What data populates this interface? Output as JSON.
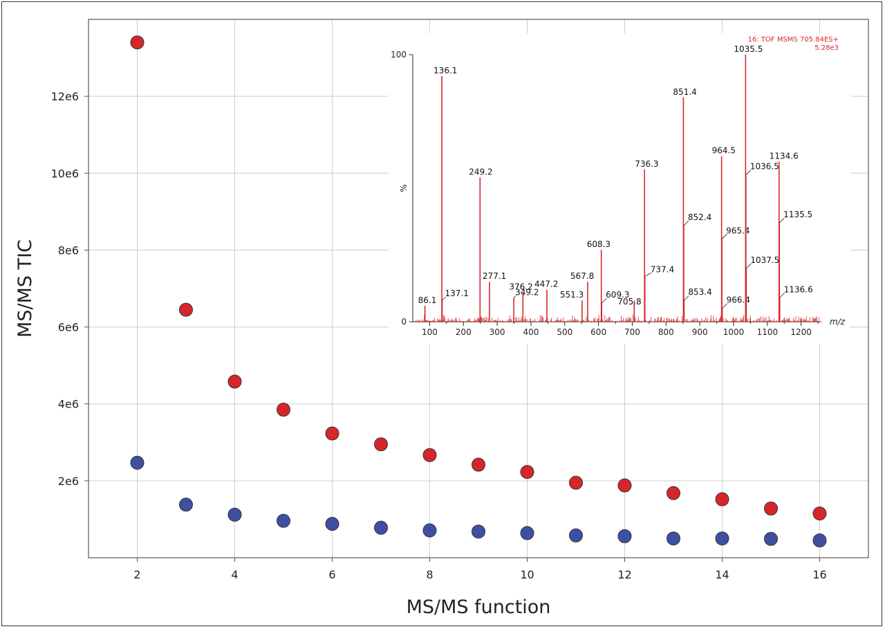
{
  "colors": {
    "red_series": "#d7262b",
    "blue_series": "#3f4fa3",
    "grid": "#cccccc",
    "spectrum": "#d7262b"
  },
  "chart_data": [
    {
      "type": "scatter",
      "xlabel": "MS/MS function",
      "ylabel": "MS/MS TIC",
      "xlim": [
        1,
        17
      ],
      "ylim": [
        0,
        14000000
      ],
      "x_ticks": [
        2,
        4,
        6,
        8,
        10,
        12,
        14,
        16
      ],
      "y_ticks": [
        2000000,
        4000000,
        6000000,
        8000000,
        10000000,
        12000000
      ],
      "y_tick_labels": [
        "2e6",
        "4e6",
        "6e6",
        "8e6",
        "10e6",
        "12e6"
      ],
      "grid": true,
      "series": [
        {
          "color": "#d7262b",
          "x": [
            2,
            3,
            4,
            5,
            6,
            7,
            8,
            9,
            10,
            11,
            12,
            13,
            14,
            15,
            16
          ],
          "y": [
            13400000,
            6450000,
            4580000,
            3850000,
            3230000,
            2950000,
            2670000,
            2420000,
            2230000,
            1950000,
            1880000,
            1680000,
            1520000,
            1280000,
            1150000
          ]
        },
        {
          "color": "#3f4fa3",
          "x": [
            2,
            3,
            4,
            5,
            6,
            7,
            8,
            9,
            10,
            11,
            12,
            13,
            14,
            15,
            16
          ],
          "y": [
            2470000,
            1380000,
            1120000,
            960000,
            880000,
            780000,
            710000,
            680000,
            640000,
            580000,
            560000,
            500000,
            500000,
            490000,
            450000
          ]
        }
      ]
    },
    {
      "type": "line",
      "header_line1": "16: TOF MSMS 705.84ES+",
      "header_line2": "5.28e3",
      "xlabel": "m/z",
      "ylabel": "%",
      "xlim": [
        50,
        1260
      ],
      "ylim": [
        0,
        100
      ],
      "x_ticks": [
        100,
        200,
        300,
        400,
        500,
        600,
        700,
        800,
        900,
        1000,
        1100,
        1200
      ],
      "y_tick_labels": [
        "0",
        "100"
      ],
      "peaks": [
        {
          "mz": 86.1,
          "intensity": 6,
          "label": "86.1"
        },
        {
          "mz": 136.1,
          "intensity": 92,
          "label": "136.1"
        },
        {
          "mz": 137.1,
          "intensity": 8,
          "label": "137.1"
        },
        {
          "mz": 249.2,
          "intensity": 54,
          "label": "249.2"
        },
        {
          "mz": 277.1,
          "intensity": 15,
          "label": "277.1"
        },
        {
          "mz": 349.2,
          "intensity": 9,
          "label": "349.2"
        },
        {
          "mz": 376.2,
          "intensity": 11,
          "label": "376.2"
        },
        {
          "mz": 447.2,
          "intensity": 12,
          "label": "447.2"
        },
        {
          "mz": 551.3,
          "intensity": 8,
          "label": "551.3"
        },
        {
          "mz": 567.8,
          "intensity": 15,
          "label": "567.8"
        },
        {
          "mz": 608.3,
          "intensity": 27,
          "label": "608.3"
        },
        {
          "mz": 609.3,
          "intensity": 7,
          "label": "609.3"
        },
        {
          "mz": 705.8,
          "intensity": 8,
          "label": "705.8"
        },
        {
          "mz": 736.3,
          "intensity": 57,
          "label": "736.3"
        },
        {
          "mz": 737.4,
          "intensity": 17,
          "label": "737.4"
        },
        {
          "mz": 851.4,
          "intensity": 84,
          "label": "851.4"
        },
        {
          "mz": 852.4,
          "intensity": 36,
          "label": "852.4"
        },
        {
          "mz": 853.4,
          "intensity": 8,
          "label": "853.4"
        },
        {
          "mz": 964.5,
          "intensity": 62,
          "label": "964.5"
        },
        {
          "mz": 965.4,
          "intensity": 31,
          "label": "965.4"
        },
        {
          "mz": 966.4,
          "intensity": 5,
          "label": "966.4"
        },
        {
          "mz": 1035.5,
          "intensity": 100,
          "label": "1035.5"
        },
        {
          "mz": 1036.5,
          "intensity": 55,
          "label": "1036.5"
        },
        {
          "mz": 1037.5,
          "intensity": 20,
          "label": "1037.5"
        },
        {
          "mz": 1134.6,
          "intensity": 60,
          "label": "1134.6"
        },
        {
          "mz": 1135.5,
          "intensity": 37,
          "label": "1135.5"
        },
        {
          "mz": 1136.6,
          "intensity": 9,
          "label": "1136.6"
        }
      ]
    }
  ]
}
